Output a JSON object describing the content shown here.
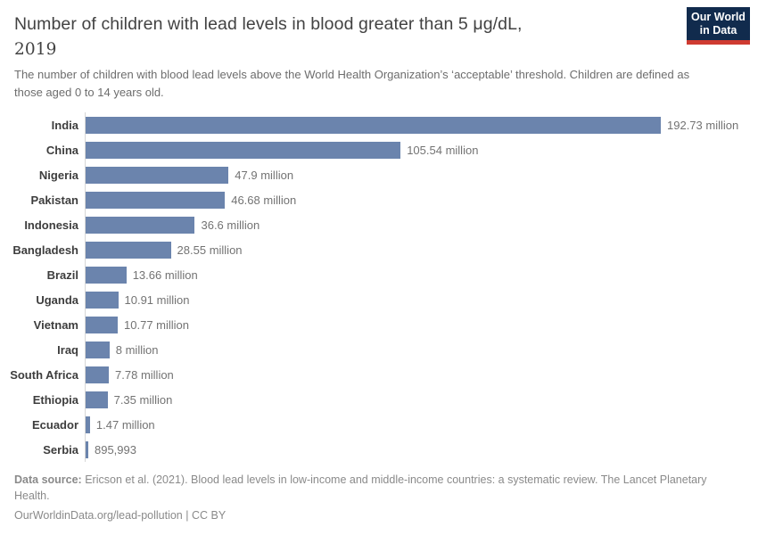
{
  "header": {
    "title": "Number of children with lead levels in blood greater than 5 μg/dL,",
    "title_year": "2019",
    "subtitle": "The number of children with blood lead levels above the World Health Organization’s ‘acceptable’ threshold. Children are defined as those aged 0 to 14 years old.",
    "logo_line1": "Our World",
    "logo_line2": "in Data"
  },
  "chart_data": {
    "type": "bar",
    "orientation": "horizontal",
    "title": "Number of children with lead levels in blood greater than 5 μg/dL, 2019",
    "unit": "children",
    "grid": false,
    "xlim": [
      0,
      192.73
    ],
    "categories": [
      "India",
      "China",
      "Nigeria",
      "Pakistan",
      "Indonesia",
      "Bangladesh",
      "Brazil",
      "Uganda",
      "Vietnam",
      "Iraq",
      "South Africa",
      "Ethiopia",
      "Ecuador",
      "Serbia"
    ],
    "values_millions": [
      192.73,
      105.54,
      47.9,
      46.68,
      36.6,
      28.55,
      13.66,
      10.91,
      10.77,
      8,
      7.78,
      7.35,
      1.47,
      0.895993
    ],
    "value_labels": [
      "192.73 million",
      "105.54 million",
      "47.9 million",
      "46.68 million",
      "36.6 million",
      "28.55 million",
      "13.66 million",
      "10.91 million",
      "10.77 million",
      "8 million",
      "7.78 million",
      "7.35 million",
      "1.47 million",
      "895,993"
    ]
  },
  "footer": {
    "source_label": "Data source:",
    "source_text": "Ericson et al. (2021). Blood lead levels in low-income and middle-income countries: a systematic review. The Lancet Planetary Health.",
    "link": "OurWorldinData.org/lead-pollution",
    "separator": "|",
    "license": "CC BY"
  },
  "colors": {
    "bar": "#6b84ad",
    "title": "#424242",
    "subtitle": "#6d6d6d",
    "category_label": "#3d3d3d",
    "value_label": "#737373",
    "axis_line": "#d6d6d6",
    "footer_text": "#8a8a8a",
    "logo_bg": "#112b4d",
    "logo_accent": "#cf3b31"
  }
}
